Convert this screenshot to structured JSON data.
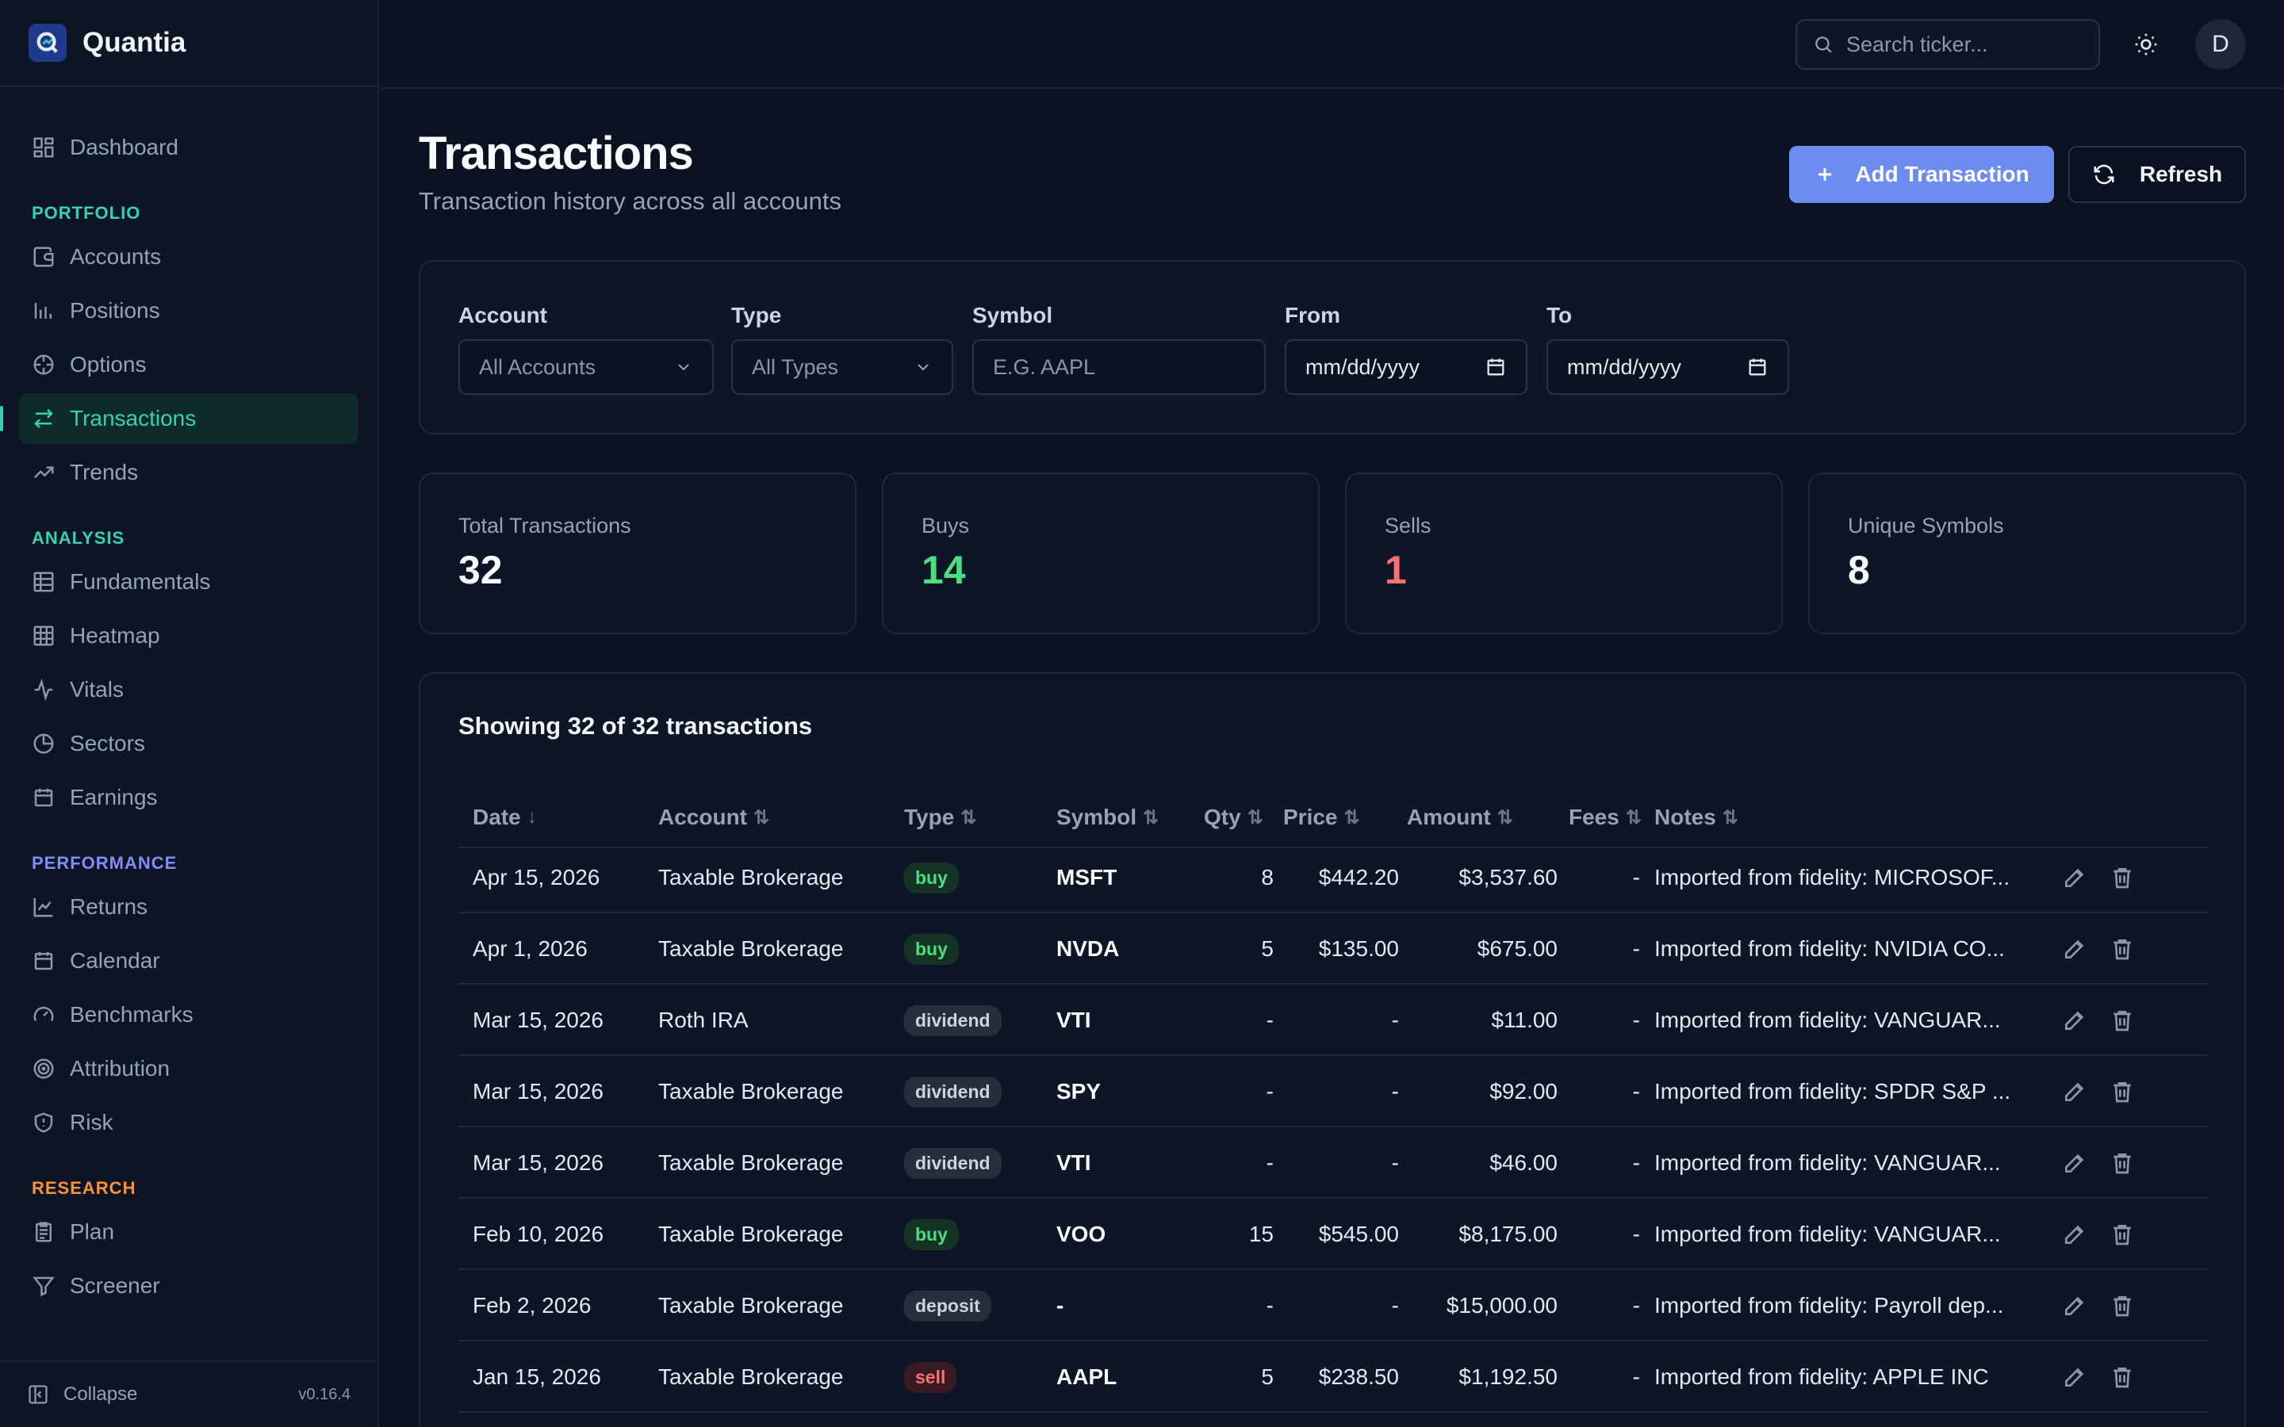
{
  "app": {
    "name": "Quantia",
    "version": "v0.16.4",
    "collapse_label": "Collapse"
  },
  "sidebar": {
    "top": [
      {
        "label": "Dashboard",
        "icon": "dashboard-icon"
      }
    ],
    "sections": [
      {
        "title": "PORTFOLIO",
        "color": "#34d3b0",
        "items": [
          {
            "label": "Accounts",
            "icon": "wallet-icon"
          },
          {
            "label": "Positions",
            "icon": "bar-chart-icon"
          },
          {
            "label": "Options",
            "icon": "crosshair-icon"
          },
          {
            "label": "Transactions",
            "icon": "arrows-exchange-icon",
            "active": true
          },
          {
            "label": "Trends",
            "icon": "trending-up-icon"
          }
        ]
      },
      {
        "title": "ANALYSIS",
        "color": "#34d3b0",
        "items": [
          {
            "label": "Fundamentals",
            "icon": "table-icon"
          },
          {
            "label": "Heatmap",
            "icon": "grid-icon"
          },
          {
            "label": "Vitals",
            "icon": "pulse-icon"
          },
          {
            "label": "Sectors",
            "icon": "pie-chart-icon"
          },
          {
            "label": "Earnings",
            "icon": "calendar-icon"
          }
        ]
      },
      {
        "title": "PERFORMANCE",
        "color": "#818cf8",
        "items": [
          {
            "label": "Returns",
            "icon": "line-chart-icon"
          },
          {
            "label": "Calendar",
            "icon": "calendar-icon"
          },
          {
            "label": "Benchmarks",
            "icon": "gauge-icon"
          },
          {
            "label": "Attribution",
            "icon": "target-icon"
          },
          {
            "label": "Risk",
            "icon": "shield-icon"
          }
        ]
      },
      {
        "title": "RESEARCH",
        "color": "#fb923c",
        "items": [
          {
            "label": "Plan",
            "icon": "clipboard-icon"
          },
          {
            "label": "Screener",
            "icon": "filter-icon"
          }
        ]
      }
    ]
  },
  "topbar": {
    "search_placeholder": "Search ticker...",
    "avatar_initial": "D"
  },
  "header": {
    "title": "Transactions",
    "subtitle": "Transaction history across all accounts",
    "add_label": "Add Transaction",
    "refresh_label": "Refresh"
  },
  "filters": {
    "account": {
      "label": "Account",
      "value": "All Accounts"
    },
    "type": {
      "label": "Type",
      "value": "All Types"
    },
    "symbol": {
      "label": "Symbol",
      "placeholder": "E.G. AAPL"
    },
    "from": {
      "label": "From",
      "value": "mm/dd/yyyy"
    },
    "to": {
      "label": "To",
      "value": "mm/dd/yyyy"
    }
  },
  "stats": [
    {
      "label": "Total Transactions",
      "value": "32",
      "color": "#f8fafc"
    },
    {
      "label": "Buys",
      "value": "14",
      "color": "#4ade80"
    },
    {
      "label": "Sells",
      "value": "1",
      "color": "#f87171"
    },
    {
      "label": "Unique Symbols",
      "value": "8",
      "color": "#f8fafc"
    }
  ],
  "table": {
    "summary": "Showing 32 of 32 transactions",
    "columns": [
      "Date",
      "Account",
      "Type",
      "Symbol",
      "Qty",
      "Price",
      "Amount",
      "Fees",
      "Notes"
    ],
    "sort_active": "↓",
    "sort_inactive": "⇅",
    "rows": [
      {
        "date": "Apr 15, 2026",
        "account": "Taxable Brokerage",
        "type": "buy",
        "symbol": "MSFT",
        "qty": "8",
        "price": "$442.20",
        "amount": "$3,537.60",
        "fees": "-",
        "notes": "Imported from fidelity: MICROSOF..."
      },
      {
        "date": "Apr 1, 2026",
        "account": "Taxable Brokerage",
        "type": "buy",
        "symbol": "NVDA",
        "qty": "5",
        "price": "$135.00",
        "amount": "$675.00",
        "fees": "-",
        "notes": "Imported from fidelity: NVIDIA CO..."
      },
      {
        "date": "Mar 15, 2026",
        "account": "Roth IRA",
        "type": "dividend",
        "symbol": "VTI",
        "qty": "-",
        "price": "-",
        "amount": "$11.00",
        "fees": "-",
        "notes": "Imported from fidelity: VANGUAR..."
      },
      {
        "date": "Mar 15, 2026",
        "account": "Taxable Brokerage",
        "type": "dividend",
        "symbol": "SPY",
        "qty": "-",
        "price": "-",
        "amount": "$92.00",
        "fees": "-",
        "notes": "Imported from fidelity: SPDR S&P ..."
      },
      {
        "date": "Mar 15, 2026",
        "account": "Taxable Brokerage",
        "type": "dividend",
        "symbol": "VTI",
        "qty": "-",
        "price": "-",
        "amount": "$46.00",
        "fees": "-",
        "notes": "Imported from fidelity: VANGUAR..."
      },
      {
        "date": "Feb 10, 2026",
        "account": "Taxable Brokerage",
        "type": "buy",
        "symbol": "VOO",
        "qty": "15",
        "price": "$545.00",
        "amount": "$8,175.00",
        "fees": "-",
        "notes": "Imported from fidelity: VANGUAR..."
      },
      {
        "date": "Feb 2, 2026",
        "account": "Taxable Brokerage",
        "type": "deposit",
        "symbol": "-",
        "qty": "-",
        "price": "-",
        "amount": "$15,000.00",
        "fees": "-",
        "notes": "Imported from fidelity: Payroll dep..."
      },
      {
        "date": "Jan 15, 2026",
        "account": "Taxable Brokerage",
        "type": "sell",
        "symbol": "AAPL",
        "qty": "5",
        "price": "$238.50",
        "amount": "$1,192.50",
        "fees": "-",
        "notes": "Imported from fidelity: APPLE INC"
      }
    ]
  }
}
